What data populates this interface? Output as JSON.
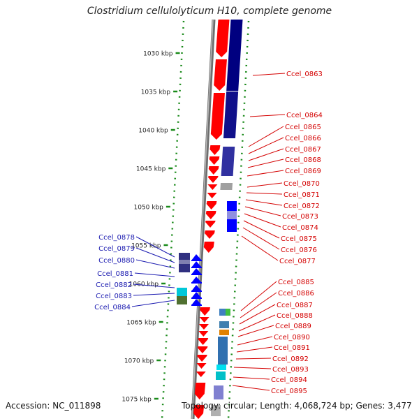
{
  "title": "Clostridium cellulolyticum H10, complete genome",
  "accession": "Accession: NC_011898",
  "topology": "Topology: circular; Length: 4,068,724 bp; Genes: 3,477",
  "colors": {
    "forward": "#ff0000",
    "reverse": "#000080",
    "blue": "#0000ff",
    "label_right": "#d40000",
    "label_left": "#1a1ab0",
    "tick": "#1a8a1a",
    "backbone": "#8a8a8a"
  },
  "ticks": [
    {
      "label": "1030 kbp",
      "kbp": 1030
    },
    {
      "label": "1035 kbp",
      "kbp": 1035
    },
    {
      "label": "1040 kbp",
      "kbp": 1040
    },
    {
      "label": "1045 kbp",
      "kbp": 1045
    },
    {
      "label": "1050 kbp",
      "kbp": 1050
    },
    {
      "label": "1055 kbp",
      "kbp": 1055
    },
    {
      "label": "1060 kbp",
      "kbp": 1060
    },
    {
      "label": "1065 kbp",
      "kbp": 1065
    },
    {
      "label": "1070 kbp",
      "kbp": 1070
    },
    {
      "label": "1075 kbp",
      "kbp": 1075
    }
  ],
  "right_labels": [
    "Ccel_0863",
    "Ccel_0864",
    "Ccel_0865",
    "Ccel_0866",
    "Ccel_0867",
    "Ccel_0868",
    "Ccel_0869",
    "Ccel_0870",
    "Ccel_0871",
    "Ccel_0872",
    "Ccel_0873",
    "Ccel_0874",
    "Ccel_0875",
    "Ccel_0876",
    "Ccel_0877",
    "Ccel_0885",
    "Ccel_0886",
    "Ccel_0887",
    "Ccel_0888",
    "Ccel_0889",
    "Ccel_0890",
    "Ccel_0891",
    "Ccel_0892",
    "Ccel_0893",
    "Ccel_0894",
    "Ccel_0895"
  ],
  "left_labels": [
    "Ccel_0878",
    "Ccel_0879",
    "Ccel_0880",
    "Ccel_0881",
    "Ccel_0882",
    "Ccel_0883",
    "Ccel_0884"
  ]
}
